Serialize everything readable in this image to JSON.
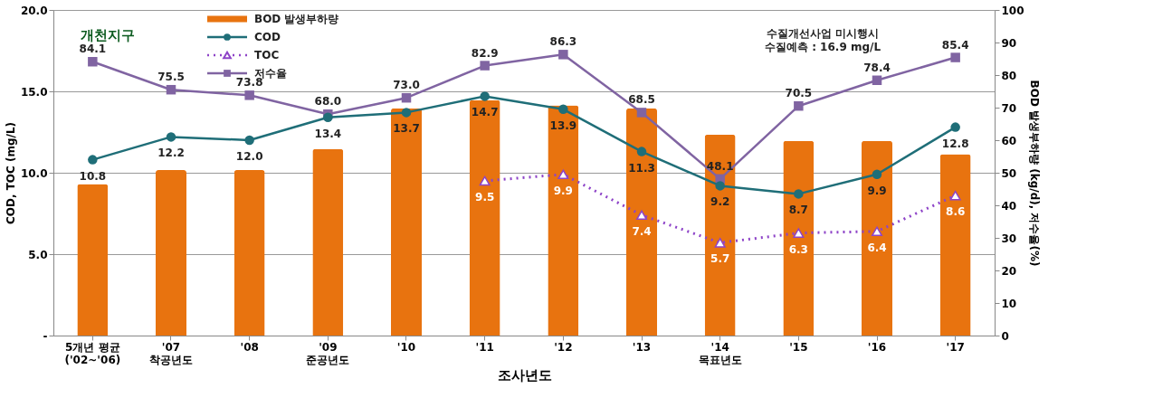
{
  "chart_data": {
    "type": "line",
    "categories": [
      "5개년 평균\n('02~'06)",
      "'07\n착공년도",
      "'08",
      "'09\n준공년도",
      "'10",
      "'11",
      "'12",
      "'13",
      "'14\n목표년도",
      "'15",
      "'16",
      "'17"
    ],
    "xlabel": "조사년도",
    "ylabel": "COD, TOC (mg/L)",
    "y2label": "BOD 발생부하량 (kg/d), 저수율(%)",
    "series": [
      {
        "name": "BOD 발생부하량",
        "type": "bar",
        "axis": "y2",
        "color": "#e8730f",
        "values": [
          46.5,
          50.8,
          50.8,
          57.3,
          69.8,
          72.3,
          70.7,
          69.8,
          61.7,
          59.8,
          59.8,
          55.7
        ]
      },
      {
        "name": "COD",
        "color": "#1f6e78",
        "marker": "circle",
        "line_style": "solid",
        "values": [
          10.8,
          12.2,
          12.0,
          13.4,
          13.7,
          14.7,
          13.9,
          11.3,
          9.2,
          8.7,
          9.9,
          12.8
        ],
        "value_labels": [
          "10.8",
          "12.2",
          "12.0",
          "13.4",
          "13.7",
          "14.7",
          "13.9",
          "11.3",
          "9.2",
          "8.7",
          "9.9",
          "12.8"
        ]
      },
      {
        "name": "TOC",
        "color": "#8e44c8",
        "marker": "triangle",
        "line_style": "dotted",
        "values": [
          null,
          null,
          null,
          null,
          null,
          9.5,
          9.9,
          7.4,
          5.7,
          6.3,
          6.4,
          8.6
        ],
        "value_labels": [
          null,
          null,
          null,
          null,
          null,
          "9.5",
          "9.9",
          "7.4",
          "5.7",
          "6.3",
          "6.4",
          "8.6"
        ]
      },
      {
        "name": "저수율",
        "type": "line",
        "axis": "y2",
        "color": "#8064a2",
        "marker": "square",
        "line_style": "solid",
        "values": [
          84.1,
          75.5,
          73.8,
          68.0,
          73.0,
          82.9,
          86.3,
          68.5,
          48.1,
          70.5,
          78.4,
          85.4
        ],
        "value_labels": [
          "84.1",
          "75.5",
          "73.8",
          "68.0",
          "73.0",
          "82.9",
          "86.3",
          "68.5",
          "48.1",
          "70.5",
          "78.4",
          "85.4"
        ]
      }
    ],
    "ylim": [
      0,
      20
    ],
    "yticks": [
      {
        "value": 0,
        "label": "-"
      },
      {
        "value": 5,
        "label": "5.0"
      },
      {
        "value": 10,
        "label": "10.0"
      },
      {
        "value": 15,
        "label": "15.0"
      },
      {
        "value": 20,
        "label": "20.0"
      }
    ],
    "y2lim": [
      0,
      100
    ],
    "y2ticks": [
      0,
      10,
      20,
      30,
      40,
      50,
      60,
      70,
      80,
      90,
      100
    ],
    "grid": "y",
    "legend": "top left",
    "annotations": [
      "개천지구",
      "수질개선사업 미시행시\n수질예측 : 16.9 mg/L"
    ]
  }
}
